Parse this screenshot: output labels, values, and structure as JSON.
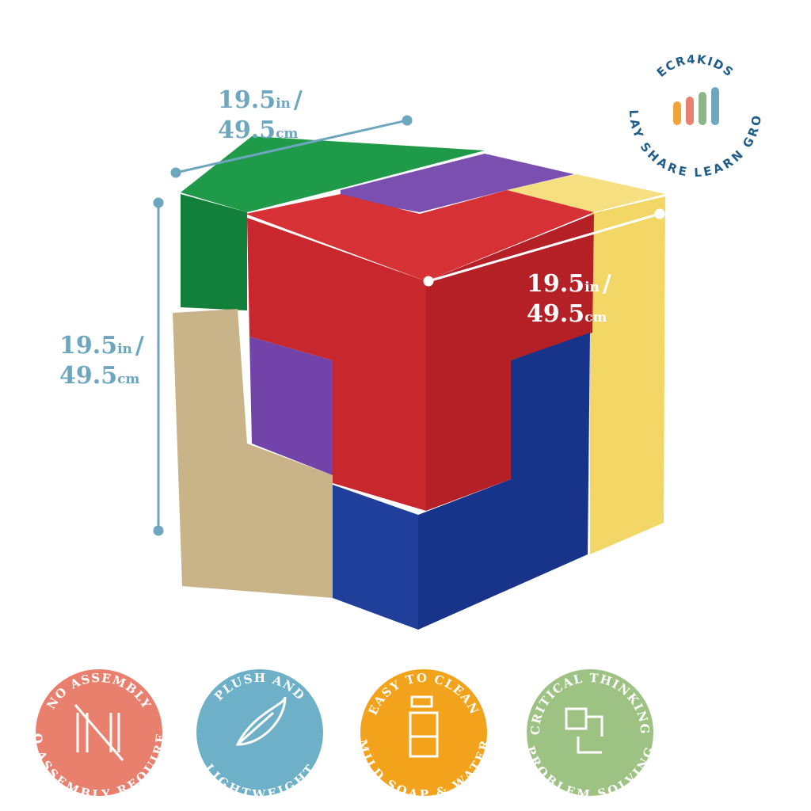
{
  "dimensions": [
    {
      "in_value": "19.5",
      "in_unit": "in",
      "separator": "/",
      "cm_value": "49.5",
      "cm_unit": "cm"
    },
    {
      "in_value": "19.5",
      "in_unit": "in",
      "separator": "/",
      "cm_value": "49.5",
      "cm_unit": "cm"
    },
    {
      "in_value": "19.5",
      "in_unit": "in",
      "separator": "/",
      "cm_value": "49.5",
      "cm_unit": "cm"
    }
  ],
  "logo": {
    "brand": "ECR4KIDS",
    "tagline": "PLAY SHARE LEARN GROW"
  },
  "badges": [
    {
      "top": "NO ASSEMBLY",
      "bottom": "NO ASSEMBLY REQUIRED"
    },
    {
      "top": "PLUSH AND",
      "bottom": "LIGHTWEIGHT"
    },
    {
      "top": "EASY TO CLEAN",
      "bottom": "MILD SOAP & WATER"
    },
    {
      "top": "CRITICAL THINKING",
      "bottom": "PROBLEM SOLVING"
    }
  ]
}
